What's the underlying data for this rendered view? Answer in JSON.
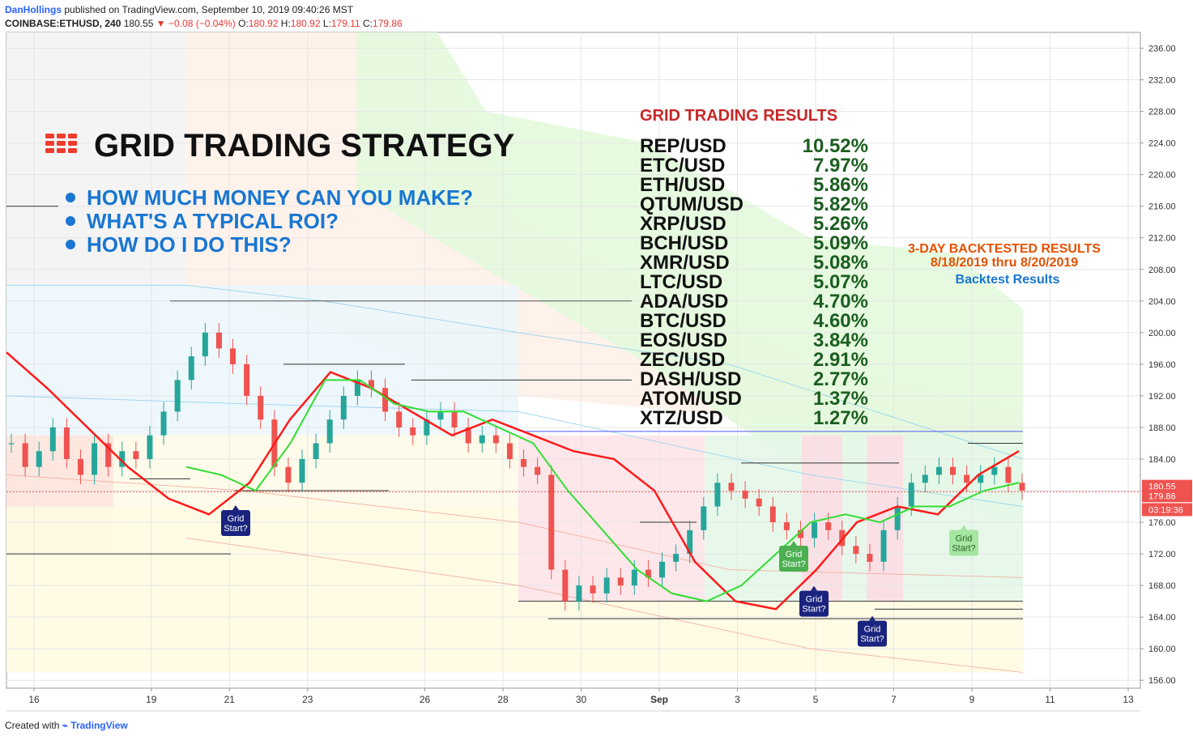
{
  "header": {
    "author": "DanHollings",
    "published_text": "published on TradingView.com, September 10, 2019 09:40:26 MST",
    "symbol": "COINBASE:ETHUSD, 240",
    "last": "180.55",
    "change": "−0.08 (−0.04%)",
    "o_label": "O:",
    "o": "180.92",
    "h_label": "H:",
    "h": "180.92",
    "l_label": "L:",
    "l": "179.11",
    "c_label": "C:",
    "c": "179.86"
  },
  "footer": {
    "created_with": "Created with",
    "brand": "TradingView"
  },
  "overlay": {
    "title": "GRID TRADING STRATEGY",
    "bullets": [
      "HOW MUCH MONEY CAN YOU MAKE?",
      "WHAT'S A TYPICAL ROI?",
      "HOW DO I DO THIS?"
    ],
    "results_title": "GRID TRADING RESULTS",
    "results": [
      {
        "pair": "REP/USD",
        "pct": "10.52%"
      },
      {
        "pair": "ETC/USD",
        "pct": "7.97%"
      },
      {
        "pair": "ETH/USD",
        "pct": "5.86%"
      },
      {
        "pair": "QTUM/USD",
        "pct": "5.82%"
      },
      {
        "pair": "XRP/USD",
        "pct": "5.26%"
      },
      {
        "pair": "BCH/USD",
        "pct": "5.09%"
      },
      {
        "pair": "XMR/USD",
        "pct": "5.08%"
      },
      {
        "pair": "LTC/USD",
        "pct": "5.07%"
      },
      {
        "pair": "ADA/USD",
        "pct": "4.70%"
      },
      {
        "pair": "BTC/USD",
        "pct": "4.60%"
      },
      {
        "pair": "EOS/USD",
        "pct": "3.84%"
      },
      {
        "pair": "ZEC/USD",
        "pct": "2.91%"
      },
      {
        "pair": "DASH/USD",
        "pct": "2.77%"
      },
      {
        "pair": "ATOM/USD",
        "pct": "1.37%"
      },
      {
        "pair": "XTZ/USD",
        "pct": "1.27%"
      }
    ],
    "backtest_line1": "3-DAY BACKTESTED RESULTS",
    "backtest_line2": "8/18/2019  thru  8/20/2019",
    "backtest_link": "Backtest Results",
    "callouts": [
      {
        "text": "Grid\nStart?",
        "style": "blue",
        "x": 21.1,
        "y": 175.9
      },
      {
        "text": "Grid\nStart?",
        "style": "green",
        "x": 4.75,
        "y": 171.5
      },
      {
        "text": "Grid\nStart?",
        "style": "blue",
        "x": 4.0,
        "y": 165.8
      },
      {
        "text": "Grid\nStart?",
        "style": "blue",
        "x": 6.5,
        "y": 162.0
      },
      {
        "text": "Grid\nStart?",
        "style": "green",
        "x": 8.9,
        "y": 173.5
      }
    ]
  },
  "price_labels": [
    {
      "value": "180.55",
      "price": 180.55,
      "color": "#ef5350"
    },
    {
      "value": "179.86",
      "price": 179.36,
      "color": "#ef5350"
    },
    {
      "value": "03:19:36",
      "price": 177.6,
      "color": "#ef5350"
    }
  ],
  "colors": {
    "up": "#26a69a",
    "down": "#ef5350",
    "signal": "#ff1a1a",
    "baseline": "#33dd33",
    "title_red": "#c62828",
    "green_text": "#1b5e20",
    "bullet_blue": "#1976d2",
    "orange": "#e65100"
  },
  "chart_data": {
    "type": "candlestick",
    "ylim": [
      155,
      238
    ],
    "y_ticks": [
      "156.00",
      "160.00",
      "164.00",
      "168.00",
      "172.00",
      "176.00",
      "180.00",
      "184.00",
      "188.00",
      "192.00",
      "196.00",
      "200.00",
      "204.00",
      "208.00",
      "212.00",
      "216.00",
      "220.00",
      "224.00",
      "228.00",
      "232.00",
      "236.00"
    ],
    "x_ticks": [
      {
        "label": "16",
        "day": 16
      },
      {
        "label": "19",
        "day": 19
      },
      {
        "label": "21",
        "day": 21
      },
      {
        "label": "23",
        "day": 23
      },
      {
        "label": "26",
        "day": 26
      },
      {
        "label": "28",
        "day": 28
      },
      {
        "label": "30",
        "day": 30
      },
      {
        "label": "Sep",
        "day": 32
      },
      {
        "label": "3",
        "day": 34
      },
      {
        "label": "5",
        "day": 36
      },
      {
        "label": "7",
        "day": 38
      },
      {
        "label": "9",
        "day": 40
      },
      {
        "label": "11",
        "day": 42
      },
      {
        "label": "13",
        "day": 44
      }
    ],
    "ichimoku_series": [
      {
        "name": "conversion",
        "values": [
          197.5,
          193,
          188,
          183,
          179,
          177,
          181,
          189,
          195,
          193,
          190,
          187,
          189,
          187,
          185,
          184,
          180,
          171,
          166,
          165,
          170,
          176,
          178,
          177,
          182,
          185
        ]
      },
      {
        "name": "base",
        "values": [
          183,
          182,
          180,
          186,
          194,
          194,
          191,
          190,
          190,
          188,
          186,
          180,
          175,
          170,
          167,
          166,
          168,
          172,
          176,
          177,
          176,
          178,
          178,
          180,
          181
        ]
      }
    ],
    "candle_closes": [
      186,
      183,
      185,
      188,
      184,
      182,
      186,
      183,
      185,
      184,
      187,
      190,
      194,
      197,
      200,
      198,
      196,
      192,
      189,
      183,
      181,
      184,
      186,
      189,
      192,
      194,
      193,
      190,
      188,
      187,
      189,
      190,
      188,
      186,
      187,
      186,
      184,
      183,
      182,
      170,
      166,
      168,
      167,
      169,
      168,
      170,
      169,
      171,
      172,
      175,
      178,
      181,
      180,
      179,
      178,
      176,
      175,
      174,
      176,
      175,
      173,
      172,
      171,
      175,
      178,
      181,
      182,
      183,
      182,
      181,
      182,
      183,
      181,
      180
    ]
  }
}
